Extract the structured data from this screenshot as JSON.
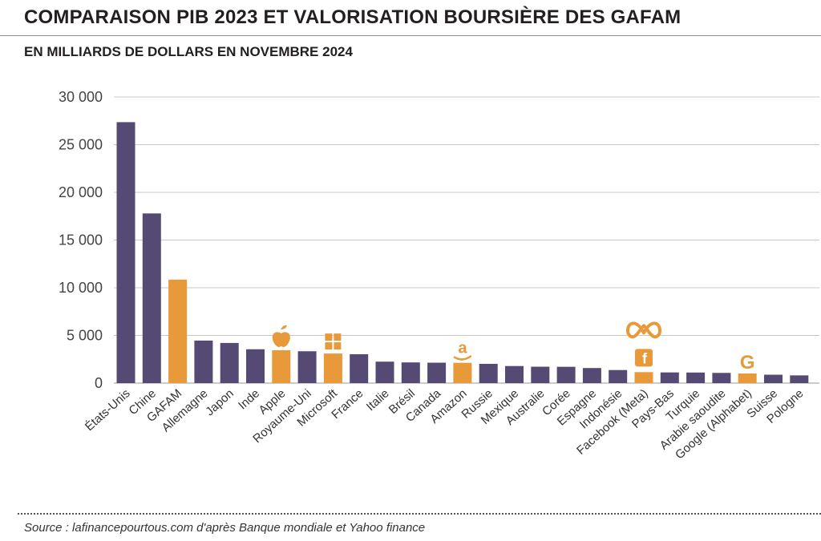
{
  "header": {
    "title": "COMPARAISON PIB 2023 ET VALORISATION BOURSIÈRE DES GAFAM",
    "subtitle": "EN MILLIARDS DE DOLLARS EN NOVEMBRE 2024"
  },
  "footer": {
    "source": "Source : lafinancepourtous.com d'après Banque mondiale et Yahoo finance"
  },
  "colors": {
    "country": "#554a73",
    "gafam": "#e8993a",
    "grid": "#c8c8c8"
  },
  "chart_data": {
    "type": "bar",
    "ylim": [
      0,
      30000
    ],
    "yticks": [
      0,
      5000,
      10000,
      15000,
      20000,
      25000,
      30000
    ],
    "ytick_labels": [
      "0",
      "5 000",
      "10 000",
      "15 000",
      "20 000",
      "25 000",
      "30 000"
    ],
    "grid": true,
    "categories": [
      "États-Unis",
      "Chine",
      "GAFAM",
      "Allemagne",
      "Japon",
      "Inde",
      "Apple",
      "Royaume-Uni",
      "Microsoft",
      "France",
      "Italie",
      "Brésil",
      "Canada",
      "Amazon",
      "Russie",
      "Mexique",
      "Australie",
      "Corée",
      "Espagne",
      "Indonésie",
      "Facebook (Meta)",
      "Pays-Bas",
      "Turquie",
      "Arabie saoudite",
      "Google (Alphabet)",
      "Suisse",
      "Pologne"
    ],
    "values": [
      27360,
      17790,
      10850,
      4460,
      4210,
      3550,
      3450,
      3340,
      3100,
      3030,
      2250,
      2170,
      2140,
      2130,
      2020,
      1790,
      1720,
      1710,
      1580,
      1370,
      1150,
      1120,
      1110,
      1070,
      1010,
      880,
      810
    ],
    "highlight": [
      false,
      false,
      true,
      false,
      false,
      false,
      true,
      false,
      true,
      false,
      false,
      false,
      false,
      true,
      false,
      false,
      false,
      false,
      false,
      false,
      true,
      false,
      false,
      false,
      true,
      false,
      false
    ],
    "logos": [
      null,
      null,
      null,
      null,
      null,
      null,
      "apple-icon",
      null,
      "windows-icon",
      null,
      null,
      null,
      null,
      "amazon-icon",
      null,
      null,
      null,
      null,
      null,
      null,
      "meta-icon",
      null,
      null,
      null,
      "google-icon",
      null,
      null
    ]
  }
}
